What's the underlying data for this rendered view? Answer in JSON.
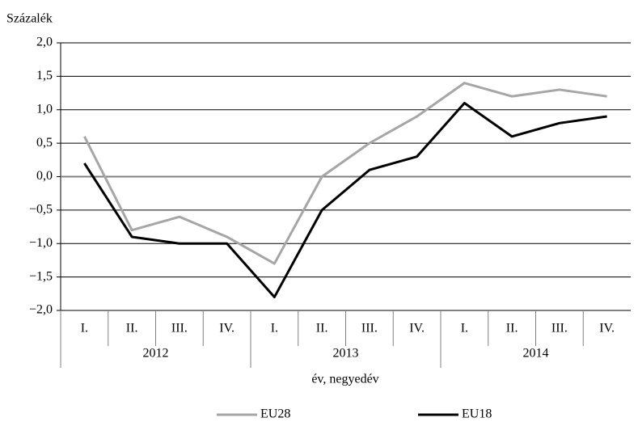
{
  "chart_data": {
    "type": "line",
    "y_axis_label": "Százalék",
    "x_axis_label": "év, negyedév",
    "categories": [
      "I.",
      "II.",
      "III.",
      "IV.",
      "I.",
      "II.",
      "III.",
      "IV.",
      "I.",
      "II.",
      "III.",
      "IV."
    ],
    "group_labels": [
      "2012",
      "2013",
      "2014"
    ],
    "series": [
      {
        "name": "EU28",
        "color": "#a6a6a6",
        "values": [
          0.6,
          -0.8,
          -0.6,
          -0.9,
          -1.3,
          0.0,
          0.5,
          0.9,
          1.4,
          1.2,
          1.3,
          1.2
        ]
      },
      {
        "name": "EU18",
        "color": "#000000",
        "values": [
          0.2,
          -0.9,
          -1.0,
          -1.0,
          -1.8,
          -0.5,
          0.1,
          0.3,
          1.1,
          0.6,
          0.8,
          0.9
        ]
      }
    ],
    "ylim": [
      -2,
      2
    ],
    "yticks": [
      {
        "value": -2,
        "label": "−2,0"
      },
      {
        "value": -1.5,
        "label": "−1,5"
      },
      {
        "value": -1,
        "label": "−1,0"
      },
      {
        "value": -0.5,
        "label": "−0,5"
      },
      {
        "value": 0,
        "label": "0,0"
      },
      {
        "value": 0.5,
        "label": "0,5"
      },
      {
        "value": 1,
        "label": "1,0"
      },
      {
        "value": 1.5,
        "label": "1,5"
      },
      {
        "value": 2,
        "label": "2,0"
      }
    ],
    "grid": true,
    "legend_position": "bottom"
  }
}
